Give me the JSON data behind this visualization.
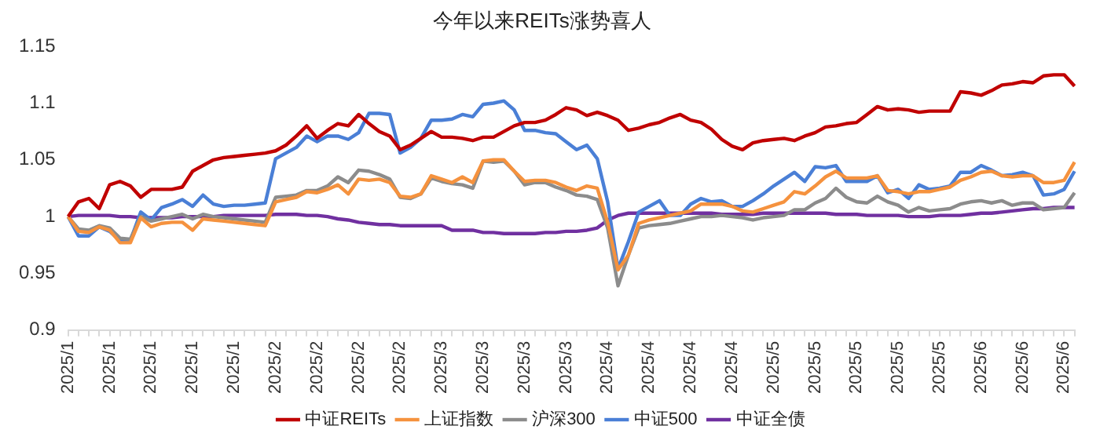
{
  "chart_data": {
    "type": "line",
    "title": "今年以来REITs涨势喜人",
    "categories": [
      "2025/1",
      null,
      null,
      null,
      "2025/1",
      null,
      null,
      null,
      "2025/1",
      null,
      null,
      null,
      "2025/1",
      null,
      null,
      null,
      "2025/1",
      null,
      null,
      null,
      "2025/2",
      null,
      null,
      null,
      "2025/2",
      null,
      null,
      null,
      "2025/2",
      null,
      null,
      null,
      "2025/2",
      null,
      null,
      null,
      "2025/3",
      null,
      null,
      null,
      "2025/3",
      null,
      null,
      null,
      "2025/3",
      null,
      null,
      null,
      "2025/3",
      null,
      null,
      null,
      "2025/4",
      null,
      null,
      null,
      "2025/4",
      null,
      null,
      null,
      "2025/4",
      null,
      null,
      null,
      "2025/4",
      null,
      null,
      null,
      "2025/5",
      null,
      null,
      null,
      "2025/5",
      null,
      null,
      null,
      "2025/5",
      null,
      null,
      null,
      "2025/5",
      null,
      null,
      null,
      "2025/5",
      null,
      null,
      null,
      "2025/6",
      null,
      null,
      null,
      "2025/6",
      null,
      null,
      null,
      "2025/6",
      null
    ],
    "series": [
      {
        "name": "中证REITs",
        "color": "#c00000",
        "values": [
          1.0,
          1.013,
          1.016,
          1.007,
          1.028,
          1.031,
          1.027,
          1.017,
          1.024,
          1.024,
          1.024,
          1.026,
          1.04,
          1.045,
          1.05,
          1.052,
          1.053,
          1.054,
          1.055,
          1.056,
          1.058,
          1.063,
          1.071,
          1.08,
          1.069,
          1.076,
          1.082,
          1.08,
          1.09,
          1.082,
          1.075,
          1.071,
          1.059,
          1.063,
          1.069,
          1.075,
          1.07,
          1.07,
          1.069,
          1.067,
          1.07,
          1.07,
          1.075,
          1.08,
          1.083,
          1.083,
          1.085,
          1.09,
          1.096,
          1.094,
          1.089,
          1.092,
          1.089,
          1.085,
          1.076,
          1.078,
          1.081,
          1.083,
          1.087,
          1.09,
          1.085,
          1.083,
          1.077,
          1.068,
          1.062,
          1.059,
          1.065,
          1.067,
          1.068,
          1.069,
          1.067,
          1.071,
          1.074,
          1.079,
          1.08,
          1.082,
          1.083,
          1.09,
          1.097,
          1.094,
          1.095,
          1.094,
          1.092,
          1.093,
          1.093,
          1.093,
          1.11,
          1.109,
          1.107,
          1.111,
          1.116,
          1.117,
          1.119,
          1.118,
          1.124,
          1.125,
          1.125,
          1.115
        ]
      },
      {
        "name": "上证指数",
        "color": "#f5923e",
        "values": [
          1.0,
          0.987,
          0.986,
          0.991,
          0.988,
          0.977,
          0.977,
          0.999,
          0.991,
          0.994,
          0.995,
          0.995,
          0.988,
          0.998,
          0.997,
          0.996,
          0.995,
          0.994,
          0.993,
          0.992,
          1.013,
          1.015,
          1.017,
          1.022,
          1.021,
          1.024,
          1.028,
          1.02,
          1.033,
          1.032,
          1.033,
          1.03,
          1.018,
          1.017,
          1.02,
          1.036,
          1.033,
          1.03,
          1.035,
          1.03,
          1.049,
          1.05,
          1.05,
          1.04,
          1.031,
          1.032,
          1.032,
          1.03,
          1.026,
          1.023,
          1.027,
          1.025,
          0.995,
          0.953,
          0.966,
          0.994,
          0.997,
          0.999,
          1.001,
          1.003,
          1.005,
          1.011,
          1.011,
          1.011,
          1.009,
          1.005,
          1.004,
          1.007,
          1.01,
          1.013,
          1.022,
          1.02,
          1.027,
          1.035,
          1.04,
          1.034,
          1.034,
          1.034,
          1.036,
          1.023,
          1.022,
          1.02,
          1.022,
          1.022,
          1.024,
          1.026,
          1.032,
          1.035,
          1.039,
          1.04,
          1.036,
          1.035,
          1.036,
          1.036,
          1.03,
          1.03,
          1.032,
          1.048
        ]
      },
      {
        "name": "沪深300",
        "color": "#8c8c8c",
        "values": [
          1.0,
          0.989,
          0.988,
          0.992,
          0.99,
          0.981,
          0.98,
          1.0,
          0.996,
          0.998,
          1.0,
          1.002,
          0.998,
          1.002,
          1.0,
          0.999,
          0.998,
          0.997,
          0.996,
          0.995,
          1.017,
          1.018,
          1.019,
          1.023,
          1.023,
          1.027,
          1.035,
          1.03,
          1.041,
          1.04,
          1.037,
          1.033,
          1.017,
          1.016,
          1.02,
          1.034,
          1.031,
          1.029,
          1.028,
          1.025,
          1.049,
          1.048,
          1.049,
          1.04,
          1.028,
          1.03,
          1.03,
          1.026,
          1.023,
          1.019,
          1.018,
          1.015,
          0.99,
          0.939,
          0.966,
          0.99,
          0.992,
          0.993,
          0.994,
          0.996,
          0.998,
          1.0,
          1.0,
          1.001,
          1.0,
          0.999,
          0.997,
          0.999,
          1.0,
          1.001,
          1.006,
          1.006,
          1.012,
          1.016,
          1.025,
          1.017,
          1.013,
          1.012,
          1.018,
          1.013,
          1.01,
          1.004,
          1.008,
          1.005,
          1.006,
          1.007,
          1.011,
          1.013,
          1.014,
          1.012,
          1.014,
          1.01,
          1.012,
          1.012,
          1.006,
          1.007,
          1.008,
          1.021
        ]
      },
      {
        "name": "中证500",
        "color": "#4a7fd6",
        "values": [
          1.0,
          0.983,
          0.983,
          0.991,
          0.987,
          0.979,
          0.979,
          1.004,
          0.997,
          1.008,
          1.011,
          1.015,
          1.009,
          1.019,
          1.011,
          1.009,
          1.01,
          1.01,
          1.011,
          1.012,
          1.051,
          1.056,
          1.061,
          1.071,
          1.066,
          1.071,
          1.071,
          1.068,
          1.074,
          1.091,
          1.091,
          1.09,
          1.056,
          1.061,
          1.069,
          1.085,
          1.085,
          1.086,
          1.09,
          1.088,
          1.099,
          1.1,
          1.102,
          1.094,
          1.076,
          1.076,
          1.074,
          1.073,
          1.066,
          1.059,
          1.063,
          1.051,
          1.013,
          0.954,
          0.978,
          1.004,
          1.009,
          1.014,
          1.001,
          1.001,
          1.011,
          1.016,
          1.013,
          1.014,
          1.009,
          1.009,
          1.014,
          1.02,
          1.027,
          1.033,
          1.039,
          1.031,
          1.044,
          1.043,
          1.045,
          1.031,
          1.031,
          1.031,
          1.036,
          1.021,
          1.024,
          1.016,
          1.028,
          1.024,
          1.025,
          1.027,
          1.039,
          1.039,
          1.045,
          1.041,
          1.036,
          1.037,
          1.039,
          1.036,
          1.019,
          1.02,
          1.024,
          1.04
        ]
      },
      {
        "name": "中证全债",
        "color": "#7030a0",
        "values": [
          1.0,
          1.001,
          1.001,
          1.001,
          1.001,
          1.0,
          1.0,
          0.999,
          0.999,
          0.999,
          0.999,
          1.0,
          1.0,
          1.0,
          1.0,
          1.001,
          1.001,
          1.001,
          1.001,
          1.001,
          1.002,
          1.002,
          1.002,
          1.001,
          1.001,
          1.0,
          0.998,
          0.997,
          0.995,
          0.994,
          0.993,
          0.993,
          0.992,
          0.992,
          0.992,
          0.992,
          0.992,
          0.988,
          0.988,
          0.988,
          0.986,
          0.986,
          0.985,
          0.985,
          0.985,
          0.985,
          0.986,
          0.986,
          0.987,
          0.987,
          0.988,
          0.99,
          0.997,
          1.001,
          1.003,
          1.003,
          1.003,
          1.003,
          1.003,
          1.003,
          1.003,
          1.003,
          1.003,
          1.002,
          1.002,
          1.002,
          1.002,
          1.003,
          1.003,
          1.003,
          1.003,
          1.003,
          1.003,
          1.003,
          1.002,
          1.002,
          1.002,
          1.001,
          1.001,
          1.001,
          1.001,
          1.0,
          1.0,
          1.0,
          1.001,
          1.001,
          1.001,
          1.002,
          1.003,
          1.003,
          1.004,
          1.005,
          1.006,
          1.007,
          1.007,
          1.008,
          1.008,
          1.008
        ]
      }
    ],
    "ylim": [
      0.9,
      1.15
    ],
    "yticks": [
      0.9,
      0.95,
      1,
      1.05,
      1.1,
      1.15
    ],
    "grid": false,
    "legend": "bottom",
    "marker": "none",
    "line_style": "solid"
  }
}
